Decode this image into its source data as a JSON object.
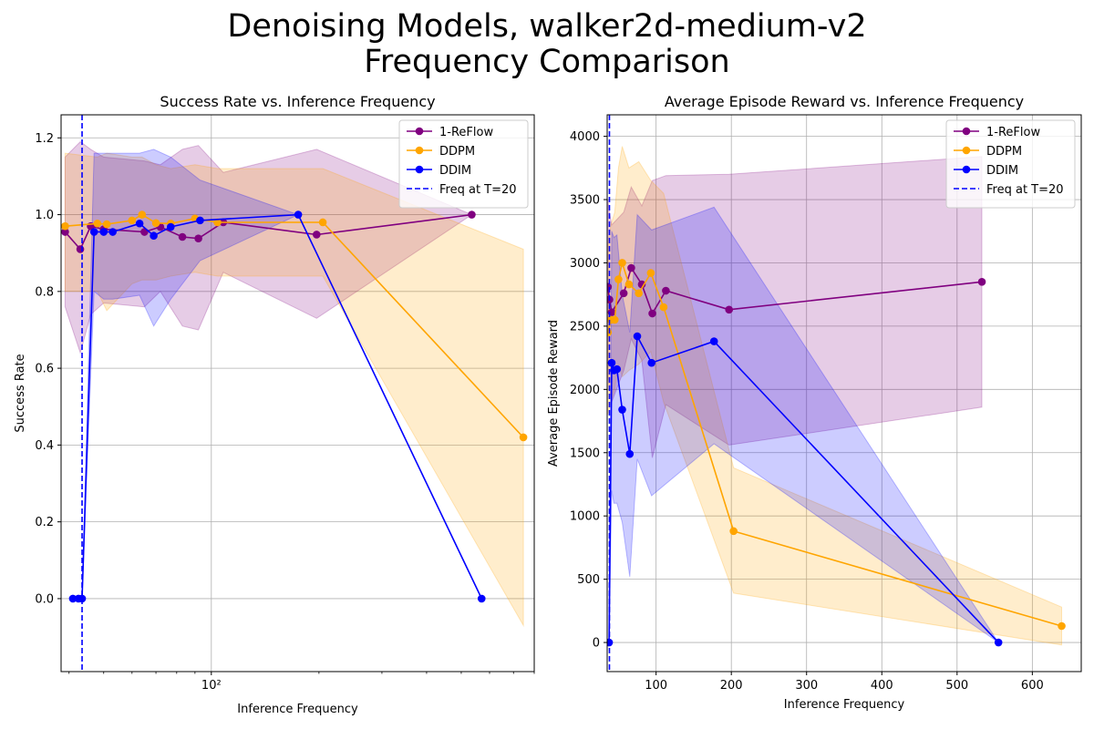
{
  "figure": {
    "title_line1": "Denoising Models, walker2d-medium-v2",
    "title_line2": "Frequency Comparison"
  },
  "colors": {
    "reflow": "#800080",
    "ddpm": "#FFA500",
    "ddim": "#0000FF",
    "grid": "#b0b0b0"
  },
  "chart_data": [
    {
      "type": "line",
      "title": "Success Rate vs. Inference Frequency",
      "xlabel": "Inference Frequency",
      "ylabel": "Success Rate",
      "xscale": "log",
      "xlim": [
        38,
        800
      ],
      "ylim": [
        -0.19,
        1.26
      ],
      "grid": true,
      "legend": "top-right",
      "xticks": [
        100
      ],
      "xtick_labels": [
        "10²"
      ],
      "yticks": [
        0.0,
        0.2,
        0.4,
        0.6,
        0.8,
        1.0,
        1.2
      ],
      "ytick_labels": [
        "0.0",
        "0.2",
        "0.4",
        "0.6",
        "0.8",
        "1.0",
        "1.2"
      ],
      "vline": {
        "x": 43.5,
        "label": "Freq at T=20"
      },
      "series": [
        {
          "name": "1-ReFlow",
          "color": "#800080",
          "x": [
            39,
            43,
            46,
            50,
            65,
            72,
            83,
            92,
            108,
            197,
            535
          ],
          "y": [
            0.955,
            0.91,
            0.97,
            0.962,
            0.955,
            0.968,
            0.942,
            0.938,
            0.98,
            0.948,
            1.0
          ],
          "lower": [
            0.76,
            0.64,
            0.74,
            0.77,
            0.76,
            0.8,
            0.71,
            0.7,
            0.85,
            0.73,
            1.0
          ],
          "upper": [
            1.15,
            1.19,
            1.17,
            1.15,
            1.14,
            1.13,
            1.17,
            1.18,
            1.11,
            1.17,
            1.0
          ]
        },
        {
          "name": "DDPM",
          "color": "#FFA500",
          "x": [
            39,
            48,
            51,
            60,
            64,
            70,
            77,
            90,
            104,
            205,
            746
          ],
          "y": [
            0.97,
            0.977,
            0.975,
            0.985,
            1.0,
            0.978,
            0.977,
            0.99,
            0.98,
            0.98,
            0.42
          ],
          "lower": [
            0.8,
            0.8,
            0.75,
            0.82,
            0.83,
            0.83,
            0.84,
            0.85,
            0.84,
            0.84,
            -0.07
          ],
          "upper": [
            1.16,
            1.15,
            1.16,
            1.15,
            1.15,
            1.13,
            1.12,
            1.13,
            1.12,
            1.12,
            0.91
          ]
        },
        {
          "name": "DDIM",
          "color": "#0000FF",
          "x": [
            41,
            42.5,
            43.5,
            47,
            50,
            53,
            63,
            69,
            77,
            93,
            175,
            570
          ],
          "y": [
            0.0,
            0.0,
            0.0,
            0.955,
            0.955,
            0.955,
            0.977,
            0.945,
            0.968,
            0.985,
            1.0,
            0.0
          ],
          "lower": [
            0.0,
            0.0,
            0.0,
            0.8,
            0.78,
            0.78,
            0.79,
            0.71,
            0.78,
            0.88,
            1.0,
            0.0
          ],
          "upper": [
            0.0,
            0.0,
            0.0,
            1.16,
            1.16,
            1.16,
            1.16,
            1.17,
            1.15,
            1.09,
            1.0,
            0.0
          ]
        }
      ]
    },
    {
      "type": "line",
      "title": "Average Episode Reward vs. Inference Frequency",
      "xlabel": "Inference Frequency",
      "ylabel": "Average Episode Reward",
      "xscale": "linear",
      "xlim": [
        35,
        665
      ],
      "ylim": [
        -230,
        4170
      ],
      "grid": true,
      "legend": "top-right",
      "xticks": [
        100,
        200,
        300,
        400,
        500,
        600
      ],
      "xtick_labels": [
        "100",
        "200",
        "300",
        "400",
        "500",
        "600"
      ],
      "yticks": [
        0,
        500,
        1000,
        1500,
        2000,
        2500,
        3000,
        3500,
        4000
      ],
      "ytick_labels": [
        "0",
        "500",
        "1000",
        "1500",
        "2000",
        "2500",
        "3000",
        "3500",
        "4000"
      ],
      "vline": {
        "x": 38,
        "label": "Freq at T=20"
      },
      "series": [
        {
          "name": "1-ReFlow",
          "color": "#800080",
          "x": [
            36,
            38,
            41,
            57,
            67,
            81,
            95,
            113,
            197,
            533
          ],
          "y": [
            2810,
            2710,
            2610,
            2760,
            2960,
            2830,
            2600,
            2780,
            2630,
            2850
          ],
          "lower": [
            2100,
            2000,
            1900,
            2150,
            2400,
            2230,
            1460,
            1880,
            1560,
            1860
          ],
          "upper": [
            3500,
            3400,
            3300,
            3400,
            3600,
            3450,
            3650,
            3690,
            3700,
            3840
          ]
        },
        {
          "name": "DDPM",
          "color": "#FFA500",
          "x": [
            36,
            40,
            45,
            50,
            55,
            64,
            77,
            93,
            110,
            203,
            639
          ],
          "y": [
            2450,
            2550,
            2550,
            2870,
            3000,
            2830,
            2760,
            2920,
            2650,
            880,
            130
          ],
          "lower": [
            1800,
            1900,
            2000,
            2200,
            2100,
            2150,
            2200,
            2300,
            1900,
            390,
            -20
          ],
          "upper": [
            3150,
            3300,
            3400,
            3750,
            3920,
            3750,
            3800,
            3650,
            3550,
            1380,
            280
          ]
        },
        {
          "name": "DDIM",
          "color": "#0000FF",
          "x": [
            37.5,
            41,
            44,
            48,
            55,
            65,
            75,
            94,
            177,
            555
          ],
          "y": [
            0,
            2210,
            2150,
            2160,
            1840,
            1490,
            2420,
            2210,
            2380,
            0
          ],
          "lower": [
            0,
            1200,
            1100,
            1100,
            950,
            520,
            1450,
            1160,
            1570,
            0
          ],
          "upper": [
            0,
            3250,
            3200,
            3220,
            2750,
            2450,
            3380,
            3260,
            3440,
            0
          ]
        }
      ]
    }
  ]
}
